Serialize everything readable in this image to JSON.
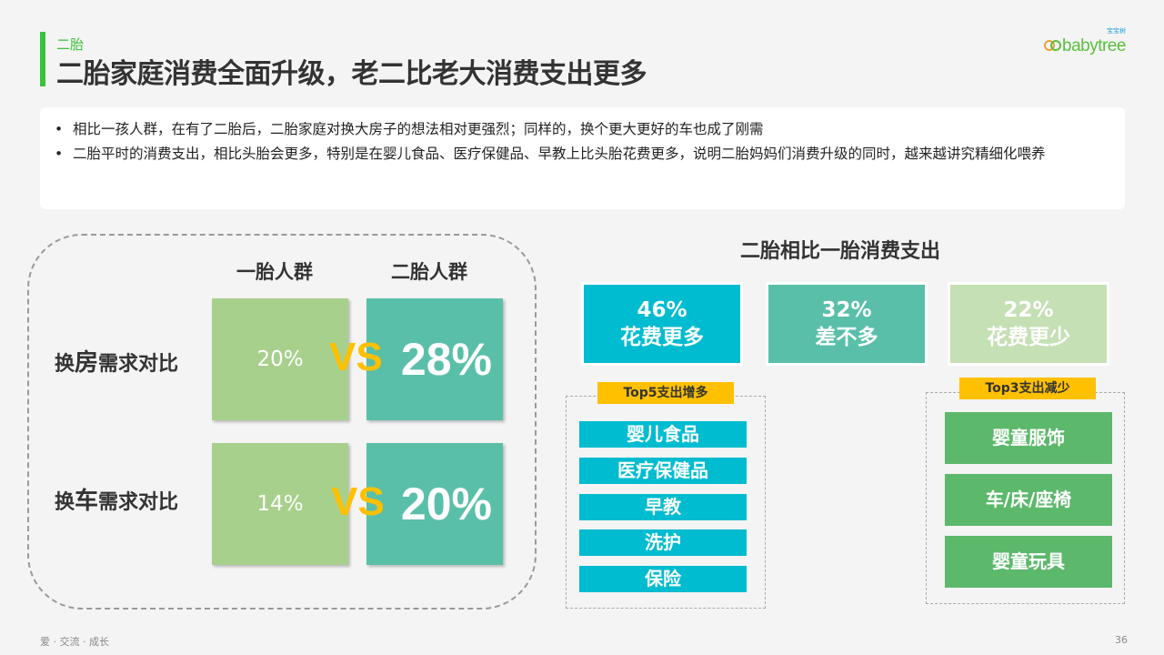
{
  "header": {
    "section": "二胎",
    "title": "二胎家庭消费全面升级，老二比老大消费支出更多",
    "logo_text": "babytree",
    "logo_cn": "宝宝树"
  },
  "bullets": [
    "相比一孩人群，在有了二胎后，二胎家庭对换大房子的想法相对更强烈；同样的，换个更大更好的车也成了刚需",
    "二胎平时的消费支出，相比头胎会更多，特别是在婴儿食品、医疗保健品、早教上比头胎花费更多，说明二胎妈妈们消费升级的同时，越来越讲究精细化喂养"
  ],
  "compare": {
    "col1": "一胎人群",
    "col2": "二胎人群",
    "vs": "VS",
    "rows": [
      {
        "label_prefix": "换",
        "label_big": "房",
        "label_rest": "需求对比",
        "first": "20%",
        "second": "28%"
      },
      {
        "label_prefix": "换",
        "label_big": "车",
        "label_rest": "需求对比",
        "first": "14%",
        "second": "20%"
      }
    ]
  },
  "spending": {
    "title": "二胎相比一胎消费支出",
    "cards": [
      {
        "pct": "46%",
        "label": "花费更多",
        "color": "#00bcd0"
      },
      {
        "pct": "32%",
        "label": "差不多",
        "color": "#5abfa9"
      },
      {
        "pct": "22%",
        "label": "花费更少",
        "color": "#c5e0b4"
      }
    ],
    "top5_tag": "Top5支出增多",
    "top5": [
      "婴儿食品",
      "医疗保健品",
      "早教",
      "洗护",
      "保险"
    ],
    "top3_tag": "Top3支出减少",
    "top3": [
      "婴童服饰",
      "车/床/座椅",
      "婴童玩具"
    ]
  },
  "footer": {
    "slogan": "爱 · 交流 · 成长",
    "page": "36"
  }
}
